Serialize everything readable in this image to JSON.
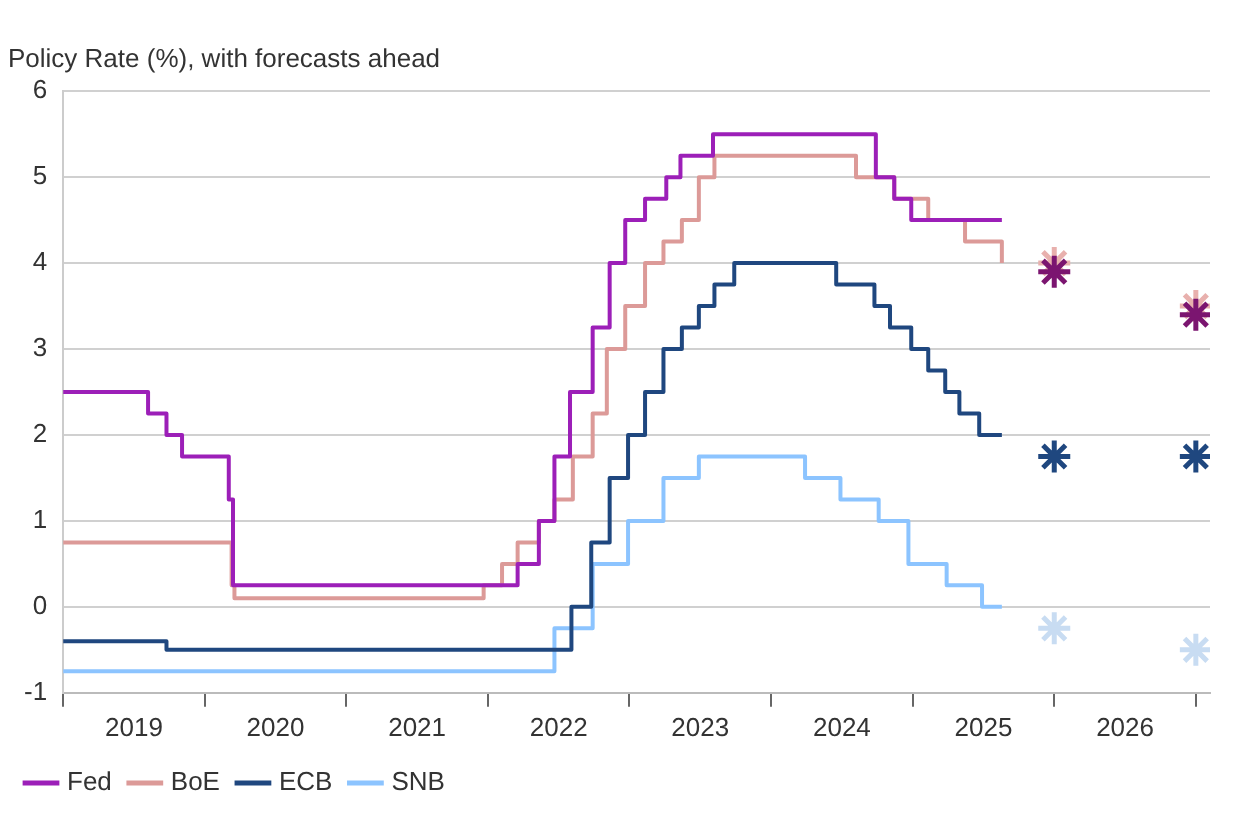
{
  "chart_data": {
    "type": "step",
    "title": "Policy Rate (%), with forecasts ahead",
    "xlim": [
      2019,
      2027.1
    ],
    "xticks": [
      {
        "value": 2019,
        "label": null
      },
      {
        "value": 2019.5,
        "label": "2019"
      },
      {
        "value": 2020,
        "label": null
      },
      {
        "value": 2020.5,
        "label": "2020"
      },
      {
        "value": 2021,
        "label": null
      },
      {
        "value": 2021.5,
        "label": "2021"
      },
      {
        "value": 2022,
        "label": null
      },
      {
        "value": 2022.5,
        "label": "2022"
      },
      {
        "value": 2023,
        "label": null
      },
      {
        "value": 2023.5,
        "label": "2023"
      },
      {
        "value": 2024,
        "label": null
      },
      {
        "value": 2024.5,
        "label": "2024"
      },
      {
        "value": 2025,
        "label": null
      },
      {
        "value": 2025.5,
        "label": "2025"
      },
      {
        "value": 2026,
        "label": null
      },
      {
        "value": 2026.5,
        "label": "2026"
      },
      {
        "value": 2027,
        "label": null
      }
    ],
    "ylim": [
      -1,
      6
    ],
    "yticks": [
      -1,
      0,
      1,
      2,
      3,
      4,
      5,
      6
    ],
    "grid": "y",
    "legend": "bottom left",
    "marker": "none",
    "line_style": "solid",
    "series": [
      {
        "name": "Fed",
        "color": "#9c1fb8",
        "x": [
          2019,
          2019.6,
          2019.73,
          2019.84,
          2020.17,
          2020.2,
          2022.21,
          2022.36,
          2022.47,
          2022.58,
          2022.74,
          2022.86,
          2022.97,
          2023.11,
          2023.26,
          2023.36,
          2023.59,
          2024.74,
          2024.87,
          2024.99,
          2025.63
        ],
        "values": [
          2.5,
          2.25,
          2,
          1.75,
          1.25,
          0.25,
          0.5,
          1,
          1.75,
          2.5,
          3.25,
          4,
          4.5,
          4.75,
          5,
          5.25,
          5.5,
          5,
          4.75,
          4.5,
          4.5
        ]
      },
      {
        "name": "BoE",
        "color": "#dc9a98",
        "x": [
          2019,
          2020.19,
          2020.21,
          2021.97,
          2022.1,
          2022.21,
          2022.36,
          2022.47,
          2022.6,
          2022.74,
          2022.84,
          2022.97,
          2023.11,
          2023.24,
          2023.37,
          2023.49,
          2023.6,
          2024.6,
          2024.87,
          2025.11,
          2025.37,
          2025.63
        ],
        "values": [
          0.75,
          0.25,
          0.1,
          0.25,
          0.5,
          0.75,
          1,
          1.25,
          1.75,
          2.25,
          3,
          3.5,
          4,
          4.25,
          4.5,
          5,
          5.25,
          5,
          4.75,
          4.5,
          4.25,
          4
        ]
      },
      {
        "name": "ECB",
        "color": "#1f477f",
        "x": [
          2019,
          2019.73,
          2022.59,
          2022.73,
          2022.86,
          2022.99,
          2023.11,
          2023.24,
          2023.37,
          2023.49,
          2023.6,
          2023.74,
          2024.46,
          2024.73,
          2024.84,
          2024.99,
          2025.11,
          2025.23,
          2025.33,
          2025.47,
          2025.63
        ],
        "values": [
          -0.4,
          -0.5,
          0,
          0.75,
          1.5,
          2,
          2.5,
          3,
          3.25,
          3.5,
          3.75,
          4,
          3.75,
          3.5,
          3.25,
          3,
          2.75,
          2.5,
          2.25,
          2,
          2
        ]
      },
      {
        "name": "SNB",
        "color": "#8cc4ff",
        "x": [
          2019,
          2022.47,
          2022.74,
          2022.99,
          2023.24,
          2023.49,
          2024.24,
          2024.49,
          2024.76,
          2024.97,
          2025.24,
          2025.49,
          2025.63
        ],
        "values": [
          -0.75,
          -0.25,
          0.5,
          1,
          1.5,
          1.75,
          1.5,
          1.25,
          1,
          0.5,
          0.25,
          0,
          0
        ]
      },
      {
        "type": "scatter",
        "marker": "cross",
        "color": "#7b1570",
        "x": [
          2026,
          2027
        ],
        "values": [
          3.9,
          3.4
        ]
      },
      {
        "type": "scatter",
        "marker": "cross",
        "color": "#e8b0ad",
        "x": [
          2026,
          2027
        ],
        "values": [
          4,
          3.5
        ]
      },
      {
        "type": "scatter",
        "marker": "cross",
        "color": "#1f477f",
        "x": [
          2026,
          2027
        ],
        "values": [
          1.75,
          1.75
        ]
      },
      {
        "type": "scatter",
        "marker": "cross",
        "color": "#c8dcf2",
        "x": [
          2026,
          2027
        ],
        "values": [
          -0.25,
          -0.5
        ]
      }
    ]
  }
}
